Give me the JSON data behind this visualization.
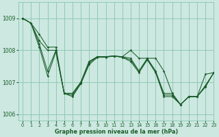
{
  "title": "Graphe pression niveau de la mer (hPa)",
  "bg_color": "#cce8e0",
  "plot_bg_color": "#cce8e0",
  "grid_color": "#88c4b0",
  "line_color": "#1a5c2a",
  "marker_color": "#1a5c2a",
  "ylim": [
    1005.8,
    1009.5
  ],
  "xlim": [
    -0.5,
    23
  ],
  "yticks": [
    1006,
    1007,
    1008,
    1009
  ],
  "xticks": [
    0,
    1,
    2,
    3,
    4,
    5,
    6,
    7,
    8,
    9,
    10,
    11,
    12,
    13,
    14,
    15,
    16,
    17,
    18,
    19,
    20,
    21,
    22,
    23
  ],
  "series": [
    [
      1009.0,
      1008.85,
      1008.5,
      1008.1,
      1008.1,
      1006.65,
      1006.65,
      1007.0,
      1007.65,
      1007.8,
      1007.8,
      1007.82,
      1007.8,
      1008.0,
      1007.75,
      1007.75,
      1007.75,
      1007.35,
      1006.65,
      1006.3,
      1006.55,
      1006.55,
      1007.25,
      1007.3
    ],
    [
      1009.0,
      1008.85,
      1008.3,
      1008.0,
      1008.0,
      1006.65,
      1006.65,
      1007.0,
      1007.65,
      1007.8,
      1007.8,
      1007.82,
      1007.8,
      1007.75,
      1007.35,
      1007.75,
      1007.35,
      1006.65,
      1006.65,
      1006.3,
      1006.55,
      1006.55,
      1006.9,
      1007.3
    ],
    [
      1009.0,
      1008.85,
      1008.2,
      1007.35,
      1008.0,
      1006.65,
      1006.6,
      1006.97,
      1007.6,
      1007.8,
      1007.8,
      1007.82,
      1007.78,
      1007.7,
      1007.35,
      1007.72,
      1007.35,
      1006.6,
      1006.6,
      1006.3,
      1006.55,
      1006.55,
      1006.88,
      1007.3
    ],
    [
      1009.0,
      1008.85,
      1008.1,
      1007.2,
      1007.95,
      1006.65,
      1006.55,
      1006.95,
      1007.55,
      1007.78,
      1007.78,
      1007.82,
      1007.78,
      1007.65,
      1007.3,
      1007.7,
      1007.3,
      1006.55,
      1006.55,
      1006.3,
      1006.55,
      1006.55,
      1006.85,
      1007.3
    ]
  ]
}
